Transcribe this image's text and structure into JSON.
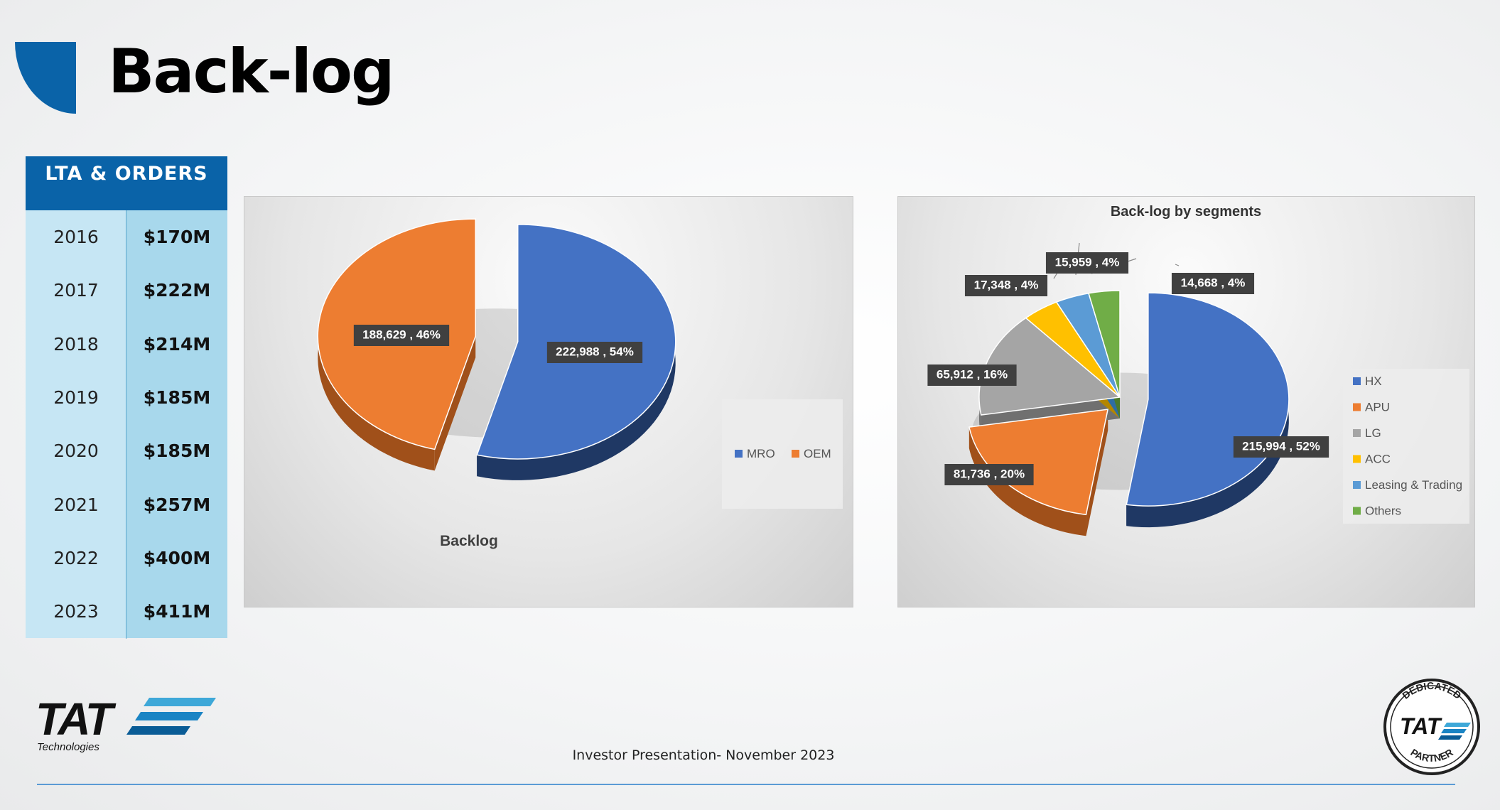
{
  "header": {
    "title": "Back-log"
  },
  "lta_table": {
    "heading": "LTA & ORDERS",
    "rows": [
      {
        "year": "2016",
        "value": "$170M"
      },
      {
        "year": "2017",
        "value": "$222M"
      },
      {
        "year": "2018",
        "value": "$214M"
      },
      {
        "year": "2019",
        "value": "$185M"
      },
      {
        "year": "2020",
        "value": "$185M"
      },
      {
        "year": "2021",
        "value": "$257M"
      },
      {
        "year": "2022",
        "value": "$400M"
      },
      {
        "year": "2023",
        "value": "$411M"
      }
    ]
  },
  "chart_data": [
    {
      "type": "pie",
      "title": "Backlog",
      "legend_position": "right",
      "slices": [
        {
          "name": "MRO",
          "value": 222988,
          "percent": 54,
          "label": "222,988 , 54%",
          "color": "#4472c4",
          "side": "#1f3864"
        },
        {
          "name": "OEM",
          "value": 188629,
          "percent": 46,
          "label": "188,629 , 46%",
          "color": "#ed7d31",
          "side": "#a0501a"
        }
      ]
    },
    {
      "type": "pie",
      "title": "Back-log by segments",
      "legend_position": "right",
      "slices": [
        {
          "name": "HX",
          "value": 215994,
          "percent": 52,
          "label": "215,994 , 52%",
          "color": "#4472c4",
          "side": "#1f3864"
        },
        {
          "name": "APU",
          "value": 81736,
          "percent": 20,
          "label": "81,736 , 20%",
          "color": "#ed7d31",
          "side": "#a0501a"
        },
        {
          "name": "LG",
          "value": 65912,
          "percent": 16,
          "label": "65,912 , 16%",
          "color": "#a5a5a5",
          "side": "#707070"
        },
        {
          "name": "ACC",
          "value": 17348,
          "percent": 4,
          "label": "17,348 , 4%",
          "color": "#ffc000",
          "side": "#b38600"
        },
        {
          "name": "Leasing & Trading",
          "value": 15959,
          "percent": 4,
          "label": "15,959 , 4%",
          "color": "#5b9bd5",
          "side": "#2e6da4"
        },
        {
          "name": "Others",
          "value": 14668,
          "percent": 4,
          "label": "14,668 , 4%",
          "color": "#70ad47",
          "side": "#4a7a2c"
        }
      ]
    }
  ],
  "footer": {
    "text": "Investor Presentation- November 2023"
  },
  "logo": {
    "text": "TAT",
    "subtitle": "Technologies"
  },
  "seal": {
    "top": "DEDICATED",
    "center": "TAT",
    "bottom": "PARTNER"
  }
}
